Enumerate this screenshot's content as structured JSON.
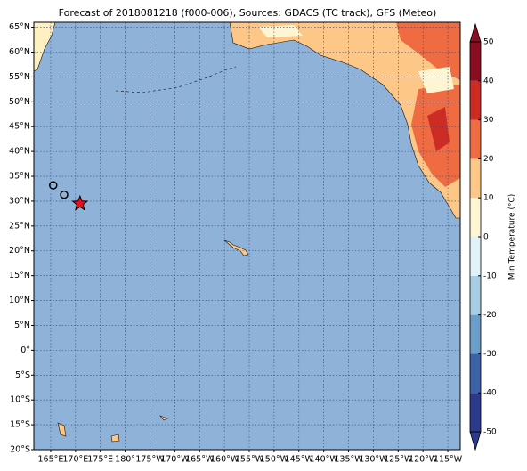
{
  "chart_data": {
    "type": "map",
    "title": "Forecast of 2018081218 (f000-006), Sources: GDACS (TC track), GFS (Meteo)",
    "xlim": [
      161.6,
      247.5
    ],
    "ylim": [
      -20,
      66
    ],
    "xticks": [
      {
        "value": 165,
        "label": "165°E"
      },
      {
        "value": 170,
        "label": "170°E"
      },
      {
        "value": 175,
        "label": "175°E"
      },
      {
        "value": 180,
        "label": "180°"
      },
      {
        "value": 185,
        "label": "175°W"
      },
      {
        "value": 190,
        "label": "170°W"
      },
      {
        "value": 195,
        "label": "165°W"
      },
      {
        "value": 200,
        "label": "160°W"
      },
      {
        "value": 205,
        "label": "155°W"
      },
      {
        "value": 210,
        "label": "150°W"
      },
      {
        "value": 215,
        "label": "145°W"
      },
      {
        "value": 220,
        "label": "140°W"
      },
      {
        "value": 225,
        "label": "135°W"
      },
      {
        "value": 230,
        "label": "130°W"
      },
      {
        "value": 235,
        "label": "125°W"
      },
      {
        "value": 240,
        "label": "120°W"
      },
      {
        "value": 245,
        "label": "115°W"
      }
    ],
    "yticks": [
      {
        "value": -20,
        "label": "20°S"
      },
      {
        "value": -15,
        "label": "15°S"
      },
      {
        "value": -10,
        "label": "10°S"
      },
      {
        "value": -5,
        "label": "5°S"
      },
      {
        "value": 0,
        "label": "0°"
      },
      {
        "value": 5,
        "label": "5°N"
      },
      {
        "value": 10,
        "label": "10°N"
      },
      {
        "value": 15,
        "label": "15°N"
      },
      {
        "value": 20,
        "label": "20°N"
      },
      {
        "value": 25,
        "label": "25°N"
      },
      {
        "value": 30,
        "label": "30°N"
      },
      {
        "value": 35,
        "label": "35°N"
      },
      {
        "value": 40,
        "label": "40°N"
      },
      {
        "value": 45,
        "label": "45°N"
      },
      {
        "value": 50,
        "label": "50°N"
      },
      {
        "value": 55,
        "label": "55°N"
      },
      {
        "value": 60,
        "label": "60°N"
      },
      {
        "value": 65,
        "label": "65°N"
      }
    ],
    "grid": true,
    "track": {
      "lon": [
        165.5,
        167.7,
        170.9
      ],
      "lat": [
        33.2,
        31.3,
        29.5
      ]
    },
    "colorbar": {
      "label": "Min Temperature (°C)",
      "ticks": [
        -50,
        -40,
        -30,
        -20,
        -10,
        0,
        10,
        20,
        30,
        40,
        50
      ],
      "levels": [
        -50,
        -40,
        -30,
        -20,
        -10,
        0,
        10,
        20,
        30,
        40,
        50
      ],
      "colors": [
        "#2c3a8c",
        "#3c62a8",
        "#6a9ec9",
        "#a7cde3",
        "#e3f2f7",
        "#fef5d2",
        "#fdc787",
        "#ef6c43",
        "#cd2c25",
        "#8a0e1f"
      ]
    }
  }
}
